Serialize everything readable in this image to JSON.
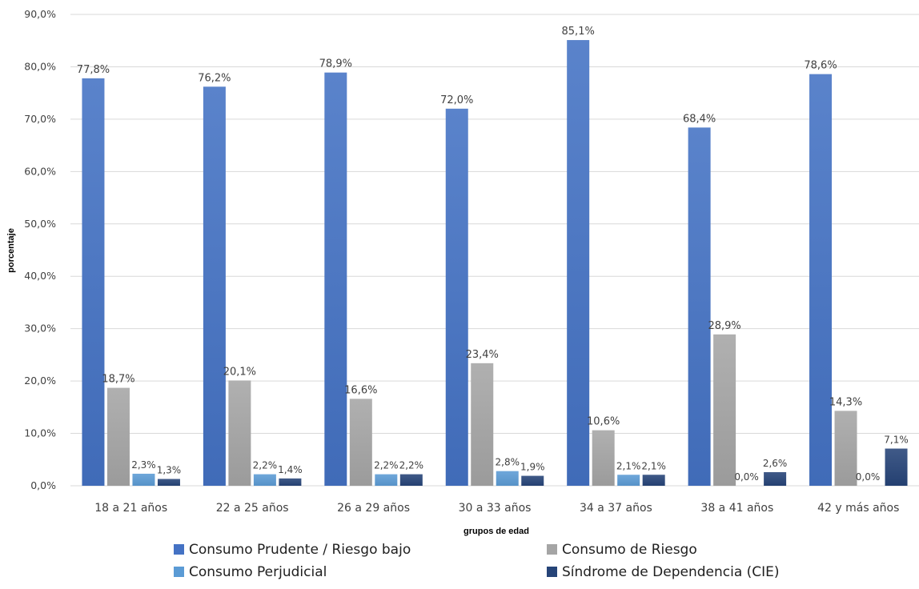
{
  "chart_data": {
    "type": "bar",
    "title": "",
    "xlabel": "grupos de edad",
    "ylabel": "porcentaje",
    "ylim": [
      0,
      90
    ],
    "ytick_labels": [
      "0,0%",
      "10,0%",
      "20,0%",
      "30,0%",
      "40,0%",
      "50,0%",
      "60,0%",
      "70,0%",
      "80,0%",
      "90,0%"
    ],
    "grid": true,
    "legend_position": "bottom",
    "categories": [
      "18 a 21 años",
      "22 a 25 años",
      "26 a 29 años",
      "30 a 33 años",
      "34 a 37 años",
      "38 a 41 años",
      "42 y más años"
    ],
    "series": [
      {
        "name": "Consumo Prudente / Riesgo bajo",
        "color": "#4472c4",
        "values": [
          77.8,
          76.2,
          78.9,
          72.0,
          85.1,
          68.4,
          78.6
        ],
        "labels": [
          "77,8%",
          "76,2%",
          "78,9%",
          "72,0%",
          "85,1%",
          "68,4%",
          "78,6%"
        ]
      },
      {
        "name": "Consumo de Riesgo",
        "color": "#a5a5a5",
        "values": [
          18.7,
          20.1,
          16.6,
          23.4,
          10.6,
          28.9,
          14.3
        ],
        "labels": [
          "18,7%",
          "20,1%",
          "16,6%",
          "23,4%",
          "10,6%",
          "28,9%",
          "14,3%"
        ]
      },
      {
        "name": "Consumo Perjudicial",
        "color": "#5b9bd5",
        "values": [
          2.3,
          2.2,
          2.2,
          2.8,
          2.1,
          0.0,
          0.0
        ],
        "labels": [
          "2,3%",
          "2,2%",
          "2,2%",
          "2,8%",
          "2,1%",
          "0,0%",
          "0,0%"
        ]
      },
      {
        "name": "Síndrome de Dependencia (CIE)",
        "color": "#264478",
        "values": [
          1.3,
          1.4,
          2.2,
          1.9,
          2.1,
          2.6,
          7.1
        ],
        "labels": [
          "1,3%",
          "1,4%",
          "2,2%",
          "1,9%",
          "2,1%",
          "2,6%",
          "7,1%"
        ]
      }
    ]
  }
}
